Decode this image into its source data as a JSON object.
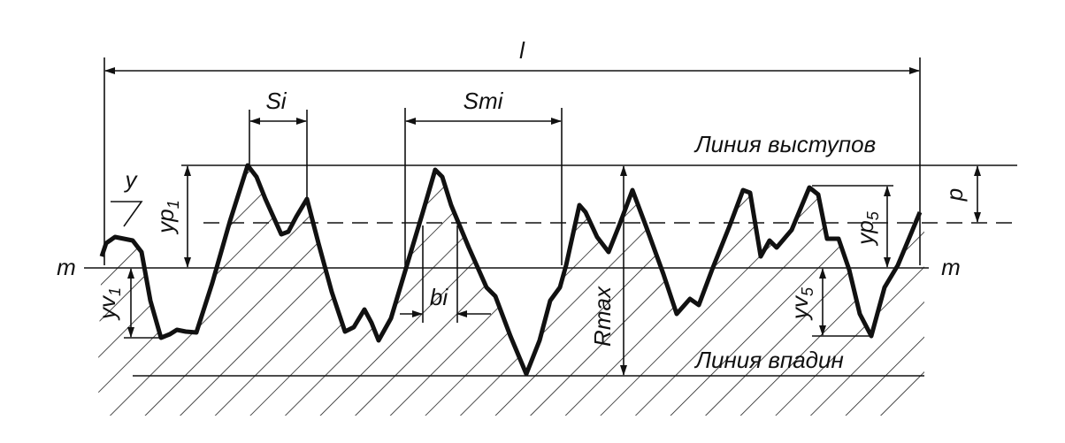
{
  "labels": {
    "length": "l",
    "si": "Si",
    "smi": "Smi",
    "peak_line": "Линия выступов",
    "y": "y",
    "yp1": {
      "text": "yp",
      "sub": "1"
    },
    "m_left": "m",
    "yv1": {
      "text": "yv",
      "sub": "1"
    },
    "bi": "bi",
    "rmax": "Rmax",
    "valley_line": "Линия впадин",
    "p": "p",
    "yp5": {
      "text": "yp",
      "sub": "5"
    },
    "yv5": {
      "text": "yv",
      "sub": "5"
    },
    "m_right": "m"
  }
}
